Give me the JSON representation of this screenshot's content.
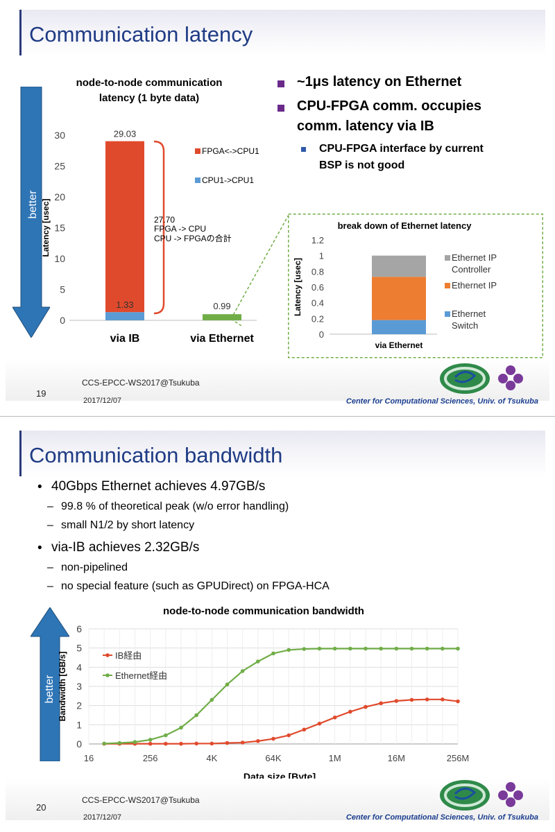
{
  "slide1": {
    "title": "Communication latency",
    "chart_title_lines": [
      "node-to-node communication",
      "latency (1 byte data)"
    ],
    "better_label": "better",
    "bullets": [
      {
        "text_lines": [
          "~1μs latency on Ethernet"
        ]
      },
      {
        "text_lines": [
          "CPU-FPGA comm. occupies",
          "comm. latency via IB"
        ]
      }
    ],
    "sub_bullet_lines": [
      "CPU-FPGA interface by current",
      "BSP is not good"
    ],
    "annotation_lines": [
      "27.70",
      "FPGA -> CPU",
      "CPU -> FPGAの合計"
    ],
    "footer_conf": "CCS-EPCC-WS2017@Tsukuba",
    "footer_date": "2017/12/07",
    "footer_right": "Center for Computational Sciences, Univ. of Tsukuba",
    "page_number": "19"
  },
  "slide2": {
    "title": "Communication bandwidth",
    "bullets": [
      {
        "text": "40Gbps Ethernet achieves 4.97GB/s",
        "subs": [
          "99.8 % of theoretical peak (w/o error handling)",
          "small N1/2 by short latency"
        ]
      },
      {
        "text": "via-IB achieves 2.32GB/s",
        "subs": [
          "non-pipelined",
          "no special feature (such as GPUDirect) on FPGA-HCA"
        ]
      }
    ],
    "better_label": "better",
    "footer_conf": "CCS-EPCC-WS2017@Tsukuba",
    "footer_date": "2017/12/07",
    "footer_right": "Center for Computational Sciences, Univ. of Tsukuba",
    "page_number": "20"
  },
  "colors": {
    "title": "#1f3b84",
    "red": "#e04a2c",
    "blue": "#5b9bd5",
    "green": "#70ad47",
    "orange": "#ed7d31",
    "gray": "#a5a5a5",
    "arrow": "#2e75b6"
  },
  "chart_data": [
    {
      "type": "bar",
      "title": "node-to-node communication latency (1 byte data)",
      "ylabel": "Latency [usec]",
      "ylim": [
        0,
        30
      ],
      "yticks": [
        0,
        5,
        10,
        15,
        20,
        25,
        30
      ],
      "categories": [
        "via IB",
        "via Ethernet"
      ],
      "stacked": true,
      "series": [
        {
          "name": "CPU1->CPU1",
          "values": [
            1.33,
            0
          ]
        },
        {
          "name": "FPGA<->CPU1",
          "values": [
            27.7,
            0
          ]
        },
        {
          "name": "",
          "values": [
            0,
            0.99
          ]
        }
      ],
      "data_labels": [
        {
          "category": "via IB",
          "text": "29.03"
        },
        {
          "category": "via IB",
          "text": "1.33"
        },
        {
          "category": "via Ethernet",
          "text": "0.99"
        }
      ],
      "legend": "right"
    },
    {
      "type": "bar",
      "title": "break down of Ethernet latency",
      "ylabel": "Latency [usec]",
      "ylim": [
        0,
        1.2
      ],
      "yticks": [
        "0",
        "0.2",
        "0.4",
        "0.6",
        "0.8",
        "1",
        "1.2"
      ],
      "categories": [
        "via Ethernet"
      ],
      "stacked": true,
      "series": [
        {
          "name": "Ethernet Switch",
          "values": [
            0.18
          ]
        },
        {
          "name": "Ethernet IP",
          "values": [
            0.55
          ]
        },
        {
          "name": "Ethernet IP Controller",
          "values": [
            0.27
          ]
        }
      ],
      "legend": "right"
    },
    {
      "type": "line",
      "title": "node-to-node communication bandwidth",
      "xlabel": "Data size [Byte]",
      "ylabel": "Bandwidth [GB/s]",
      "x_ticks": [
        "16",
        "256",
        "4K",
        "64K",
        "1M",
        "16M",
        "256M"
      ],
      "x_log2": [
        4,
        5,
        6,
        7,
        8,
        9,
        10,
        11,
        12,
        13,
        14,
        15,
        16,
        17,
        18,
        19,
        20,
        21,
        22,
        23,
        24,
        25,
        26,
        27,
        28
      ],
      "xlim_log2": [
        4,
        28
      ],
      "ylim": [
        0,
        6
      ],
      "yticks": [
        0,
        1,
        2,
        3,
        4,
        5,
        6
      ],
      "grid": true,
      "legend": "left",
      "series": [
        {
          "name": "IB経由",
          "x_log2": [
            5,
            6,
            7,
            8,
            9,
            10,
            11,
            12,
            13,
            14,
            15,
            16,
            17,
            18,
            19,
            20,
            21,
            22,
            23,
            24,
            25,
            26,
            27,
            28
          ],
          "values": [
            0.01,
            0.01,
            0.01,
            0.01,
            0.01,
            0.01,
            0.02,
            0.02,
            0.05,
            0.07,
            0.15,
            0.27,
            0.45,
            0.75,
            1.06,
            1.38,
            1.68,
            1.93,
            2.12,
            2.24,
            2.3,
            2.32,
            2.32,
            2.22
          ]
        },
        {
          "name": "Ethernet経由",
          "x_log2": [
            5,
            6,
            7,
            8,
            9,
            10,
            11,
            12,
            13,
            14,
            15,
            16,
            17,
            18,
            19,
            20,
            21,
            22,
            23,
            24,
            25,
            26,
            27,
            28
          ],
          "values": [
            0.02,
            0.05,
            0.1,
            0.22,
            0.45,
            0.85,
            1.5,
            2.3,
            3.1,
            3.8,
            4.3,
            4.72,
            4.9,
            4.95,
            4.97,
            4.97,
            4.97,
            4.97,
            4.97,
            4.97,
            4.97,
            4.97,
            4.97,
            4.97
          ]
        }
      ]
    }
  ]
}
